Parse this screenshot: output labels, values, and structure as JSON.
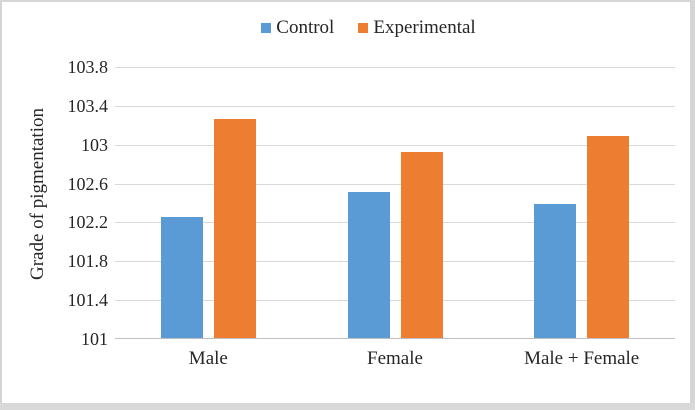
{
  "chart_data": {
    "type": "bar",
    "title": "",
    "categories": [
      "Male",
      "Female",
      "Male + Female"
    ],
    "series": [
      {
        "name": "Control",
        "color": "#5B9BD5",
        "values": [
          102.25,
          102.5,
          102.38
        ]
      },
      {
        "name": "Experimental",
        "color": "#ED7D31",
        "values": [
          103.25,
          102.92,
          103.08
        ]
      }
    ],
    "xlabel": "",
    "ylabel": "Grade of pigmentation",
    "ylim": [
      101,
      103.8
    ],
    "yticks": [
      101,
      101.4,
      101.8,
      102.2,
      102.6,
      103,
      103.4,
      103.8
    ],
    "grid": true,
    "legend_position": "top-center",
    "colors": {
      "grid": "#d9d9d9",
      "axis": "#bfbfbf",
      "text": "#262626",
      "frame_border": "#d5d5d5"
    }
  }
}
